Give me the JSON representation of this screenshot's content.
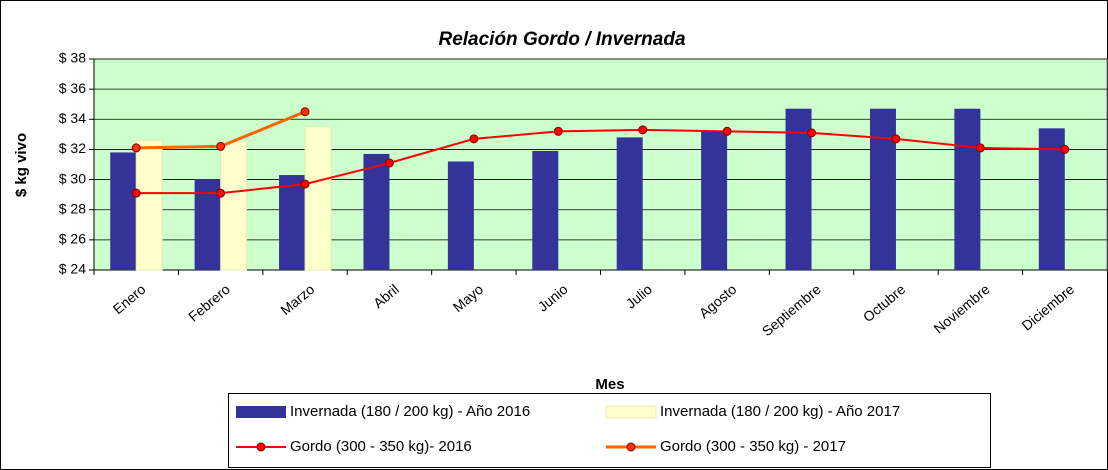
{
  "chart_data": {
    "type": "bar",
    "title": "Relación Gordo / Invernada",
    "x_label": "Mes",
    "y_label": "$ kg vivo",
    "categories": [
      "Enero",
      "Febrero",
      "Marzo",
      "Abril",
      "Mayo",
      "Junio",
      "Julio",
      "Agosto",
      "Septiembre",
      "Octubre",
      "Noviembre",
      "Diciembre"
    ],
    "series": [
      {
        "name": "Invernada (180 / 200 kg) - Año 2016",
        "type": "bar",
        "color": "#333399",
        "values": [
          31.8,
          30.0,
          30.3,
          31.7,
          31.2,
          31.9,
          32.8,
          33.2,
          34.7,
          34.7,
          34.7,
          33.4
        ]
      },
      {
        "name": "Invernada (180 / 200 kg) - Año 2017",
        "type": "bar",
        "color": "#FFFFCC",
        "values": [
          32.6,
          32.5,
          33.5,
          null,
          null,
          null,
          null,
          null,
          null,
          null,
          null,
          null
        ]
      },
      {
        "name": "Gordo (300 - 350 kg)- 2016",
        "type": "line",
        "color": "#FF0000",
        "values": [
          29.1,
          29.1,
          29.7,
          31.1,
          32.7,
          33.2,
          33.3,
          33.2,
          33.1,
          32.7,
          32.1,
          32.0
        ]
      },
      {
        "name": "Gordo (300 - 350 kg) - 2017",
        "type": "line",
        "color": "#FF6600",
        "values": [
          32.1,
          32.2,
          34.5,
          null,
          null,
          null,
          null,
          null,
          null,
          null,
          null,
          null
        ]
      }
    ],
    "ylim": [
      24,
      38
    ],
    "yticks": [
      {
        "value": 24,
        "label": "$ 24"
      },
      {
        "value": 26,
        "label": "$ 26"
      },
      {
        "value": 28,
        "label": "$ 28"
      },
      {
        "value": 30,
        "label": "$ 30"
      },
      {
        "value": 32,
        "label": "$ 32"
      },
      {
        "value": 34,
        "label": "$ 34"
      },
      {
        "value": 36,
        "label": "$ 36"
      },
      {
        "value": 38,
        "label": "$ 38"
      }
    ],
    "grid": true,
    "legend": "bottom"
  }
}
